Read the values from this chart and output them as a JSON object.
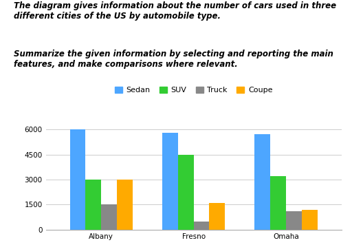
{
  "title_line1": "The diagram gives information about the number of cars used in three",
  "title_line2": "different cities of the US by automobile type.",
  "subtitle_line1": "Summarize the given information by selecting and reporting the main",
  "subtitle_line2": "features, and make comparisons where relevant.",
  "cities": [
    "Albany",
    "Fresno",
    "Omaha"
  ],
  "categories": [
    "Sedan",
    "SUV",
    "Truck",
    "Coupe"
  ],
  "values": {
    "Albany": [
      6000,
      3000,
      1500,
      3000
    ],
    "Fresno": [
      5800,
      4500,
      500,
      1600
    ],
    "Omaha": [
      5700,
      3200,
      1100,
      1200
    ]
  },
  "colors": {
    "Sedan": "#4da6ff",
    "SUV": "#33cc33",
    "Truck": "#888888",
    "Coupe": "#ffaa00"
  },
  "ylim": [
    0,
    6500
  ],
  "yticks": [
    0,
    1500,
    3000,
    4500,
    6000
  ],
  "background_color": "#ffffff",
  "grid_color": "#cccccc",
  "title_fontsize": 8.5,
  "tick_fontsize": 7.5,
  "legend_fontsize": 8.0
}
